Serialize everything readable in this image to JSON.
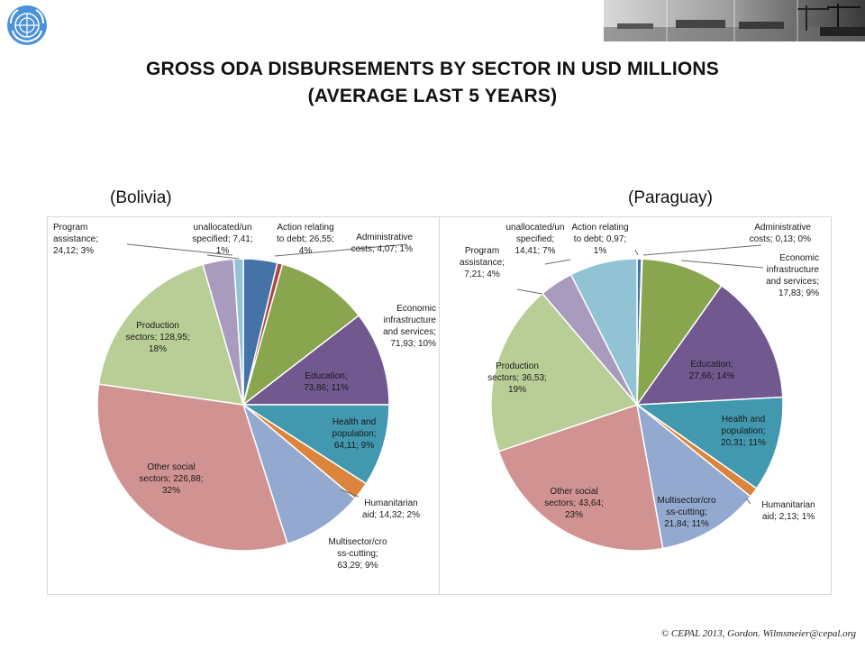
{
  "title_line1": "GROSS ODA DISBURSEMENTS BY SECTOR IN USD MILLIONS",
  "title_line2": "(AVERAGE LAST 5 YEARS)",
  "footer": "© CEPAL 2013, Gordon. Wilmsmeier@cepal.org",
  "icons": {
    "logo": "un-emblem-icon",
    "banner": "port-cranes-photo-strip"
  },
  "colors": {
    "Action relating to debt": "#4573a7",
    "Administrative costs": "#aa4643",
    "Economic infrastructure and services": "#89a54e",
    "Education": "#71588f",
    "Health and population": "#4198af",
    "Humanitarian aid": "#db843d",
    "Multisector/cross-cutting": "#93a9cf",
    "Other social sectors": "#d19392",
    "Production sectors": "#b9cd96",
    "Program assistance": "#a99bbd",
    "unallocated/unspecified": "#92c3d4"
  },
  "chart_data": [
    {
      "type": "pie",
      "title": "(Bolivia)",
      "slices": [
        {
          "sector": "Action relating to debt",
          "value": 26.55,
          "percent": 4,
          "label": [
            "Action relating",
            "to debt; 26,55;",
            "4%"
          ]
        },
        {
          "sector": "Administrative costs",
          "value": 4.07,
          "percent": 1,
          "label": [
            "Administrative",
            "costs; 4,07; 1%"
          ]
        },
        {
          "sector": "Economic infrastructure and services",
          "value": 71.93,
          "percent": 10,
          "label": [
            "Economic",
            "infrastructure",
            "and services;",
            "71,93; 10%"
          ]
        },
        {
          "sector": "Education",
          "value": 73.86,
          "percent": 11,
          "label": [
            "Education;",
            "73,86; 11%"
          ]
        },
        {
          "sector": "Health and population",
          "value": 64.11,
          "percent": 9,
          "label": [
            "Health and",
            "population;",
            "64,11; 9%"
          ]
        },
        {
          "sector": "Humanitarian aid",
          "value": 14.32,
          "percent": 2,
          "label": [
            "Humanitarian",
            "aid; 14,32; 2%"
          ]
        },
        {
          "sector": "Multisector/cross-cutting",
          "value": 63.29,
          "percent": 9,
          "label": [
            "Multisector/cro",
            "ss-cutting;",
            "63,29; 9%"
          ]
        },
        {
          "sector": "Other social sectors",
          "value": 226.88,
          "percent": 32,
          "label": [
            "Other social",
            "sectors; 226,88;",
            "32%"
          ]
        },
        {
          "sector": "Production sectors",
          "value": 128.95,
          "percent": 18,
          "label": [
            "Production",
            "sectors; 128,95;",
            "18%"
          ]
        },
        {
          "sector": "Program assistance",
          "value": 24.12,
          "percent": 3,
          "label": [
            "Program",
            "assistance;",
            "24,12; 3%"
          ]
        },
        {
          "sector": "unallocated/unspecified",
          "value": 7.41,
          "percent": 1,
          "label": [
            "unallocated/un",
            "specified; 7,41;",
            "1%"
          ]
        }
      ]
    },
    {
      "type": "pie",
      "title": "(Paraguay)",
      "slices": [
        {
          "sector": "Action relating to debt",
          "value": 0.97,
          "percent": 1,
          "label": [
            "Action relating",
            "to debt; 0,97;",
            "1%"
          ]
        },
        {
          "sector": "Administrative costs",
          "value": 0.13,
          "percent": 0,
          "label": [
            "Administrative",
            "costs; 0,13; 0%"
          ]
        },
        {
          "sector": "Economic infrastructure and services",
          "value": 17.83,
          "percent": 9,
          "label": [
            "Economic",
            "infrastructure",
            "and services;",
            "17,83; 9%"
          ]
        },
        {
          "sector": "Education",
          "value": 27.66,
          "percent": 14,
          "label": [
            "Education;",
            "27,66; 14%"
          ]
        },
        {
          "sector": "Health and population",
          "value": 20.31,
          "percent": 11,
          "label": [
            "Health and",
            "population;",
            "20,31; 11%"
          ]
        },
        {
          "sector": "Humanitarian aid",
          "value": 2.13,
          "percent": 1,
          "label": [
            "Humanitarian",
            "aid; 2,13; 1%"
          ]
        },
        {
          "sector": "Multisector/cross-cutting",
          "value": 21.84,
          "percent": 11,
          "label": [
            "Multisector/cro",
            "ss-cutting;",
            "21,84; 11%"
          ]
        },
        {
          "sector": "Other social sectors",
          "value": 43.64,
          "percent": 23,
          "label": [
            "Other social",
            "sectors; 43,64;",
            "23%"
          ]
        },
        {
          "sector": "Production sectors",
          "value": 36.53,
          "percent": 19,
          "label": [
            "Production",
            "sectors; 36,53;",
            "19%"
          ]
        },
        {
          "sector": "Program assistance",
          "value": 7.21,
          "percent": 4,
          "label": [
            "Program",
            "assistance;",
            "7,21; 4%"
          ]
        },
        {
          "sector": "unallocated/unspecified",
          "value": 14.41,
          "percent": 7,
          "label": [
            "unallocated/un",
            "specified;",
            "14,41; 7%"
          ]
        }
      ]
    }
  ]
}
